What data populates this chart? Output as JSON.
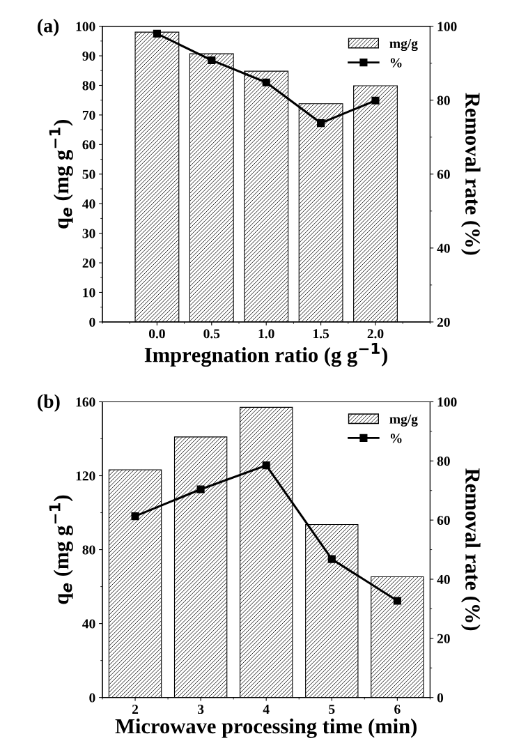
{
  "chart_data": [
    {
      "type": "bar",
      "title": "(a)",
      "xlabel": "Impregnation ratio (g g$^{−1}$)",
      "ylabel": "q$_{e}$ (mg g$^{−1}$)",
      "y2label": "Removal rate (%)",
      "x": [
        0,
        0.5,
        1.0,
        1.5,
        2.0
      ],
      "series": [
        {
          "name": "mg/g",
          "color": "#000000",
          "values": [
            98,
            90.7,
            84.8,
            73.8,
            79.9
          ]
        },
        {
          "name": "%",
          "type": "line",
          "axis": "y2",
          "color": "#000000",
          "marker": "square",
          "line_style": "solid",
          "values": [
            98.0,
            90.8,
            84.8,
            73.8,
            79.9
          ]
        }
      ],
      "xlim": [
        -0.5,
        2.5
      ],
      "xticks": [
        {
          "value": 0,
          "label": "0.0"
        },
        {
          "value": 0.5,
          "label": "0.5"
        },
        {
          "value": 1.0,
          "label": "1.0"
        },
        {
          "value": 1.5,
          "label": "1.5"
        },
        {
          "value": 2.0,
          "label": "2.0"
        }
      ],
      "ylim": [
        0,
        100
      ],
      "yticks": [
        0,
        10,
        20,
        30,
        40,
        50,
        60,
        70,
        80,
        90,
        100
      ],
      "y2lim": [
        20,
        100
      ],
      "y2ticks": [
        20,
        40,
        60,
        80,
        100
      ],
      "grid": false,
      "legend": "top right"
    },
    {
      "type": "bar",
      "title": "(b)",
      "xlabel": "Microwave processing time (min)",
      "ylabel": "q$_{e}$ (mg g$^{−1}$)",
      "y2label": "Removal rate (%)",
      "x": [
        2,
        3,
        4,
        5,
        6
      ],
      "series": [
        {
          "name": "mg/g",
          "color": "#000000",
          "values": [
            123.2,
            141,
            157,
            93.6,
            65.3
          ]
        },
        {
          "name": "%",
          "type": "line",
          "axis": "y2",
          "color": "#000000",
          "marker": "square",
          "line_style": "solid",
          "values": [
            61.3,
            70.4,
            78.5,
            46.8,
            32.7
          ]
        }
      ],
      "xlim": [
        1.5,
        6.5
      ],
      "xticks": [
        2,
        3,
        4,
        5,
        6
      ],
      "ylim": [
        0,
        160
      ],
      "yticks": [
        0,
        40,
        80,
        120,
        160
      ],
      "y2lim": [
        0,
        100
      ],
      "y2ticks": [
        0,
        20,
        40,
        60,
        80,
        100
      ],
      "grid": false,
      "legend": "top right"
    }
  ]
}
